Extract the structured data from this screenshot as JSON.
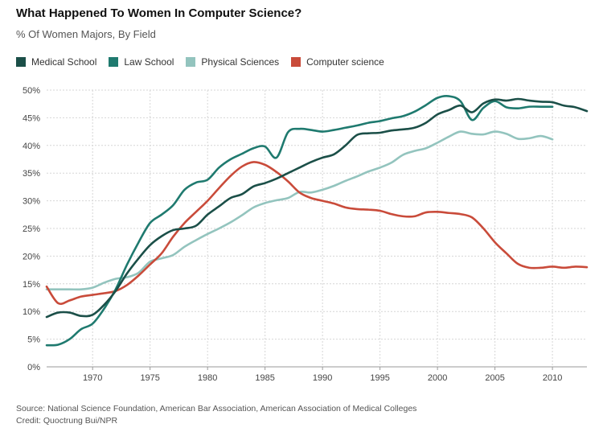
{
  "title": "What Happened To Women In Computer Science?",
  "subtitle": "% Of Women Majors, By Field",
  "footer": {
    "source": "Source: National Science Foundation, American Bar Association, American Association of Medical Colleges",
    "credit": "Credit: Quoctrung Bui/NPR"
  },
  "chart_data": {
    "type": "line",
    "title": "What Happened To Women In Computer Science?",
    "subtitle": "% Of Women Majors, By Field",
    "xlabel": "",
    "ylabel": "",
    "xlim": [
      1966,
      2013
    ],
    "ylim": [
      0,
      50
    ],
    "x_ticks": [
      1970,
      1975,
      1980,
      1985,
      1990,
      1995,
      2000,
      2005,
      2010
    ],
    "y_ticks": [
      0,
      5,
      10,
      15,
      20,
      25,
      30,
      35,
      40,
      45,
      50
    ],
    "y_tick_suffix": "%",
    "grid": true,
    "legend_position": "top-left",
    "series": [
      {
        "name": "Medical School",
        "color": "#1b4f48",
        "x": [
          1966,
          1967,
          1968,
          1969,
          1970,
          1971,
          1972,
          1973,
          1974,
          1975,
          1976,
          1977,
          1978,
          1979,
          1980,
          1981,
          1982,
          1983,
          1984,
          1985,
          1986,
          1987,
          1988,
          1989,
          1990,
          1991,
          1992,
          1993,
          1994,
          1995,
          1996,
          1997,
          1998,
          1999,
          2000,
          2001,
          2002,
          2003,
          2004,
          2005,
          2006,
          2007,
          2008,
          2009,
          2010,
          2011,
          2012,
          2013
        ],
        "y": [
          9.0,
          9.8,
          9.8,
          9.2,
          9.4,
          11.2,
          13.7,
          16.9,
          19.6,
          22.0,
          23.6,
          24.7,
          25.0,
          25.5,
          27.5,
          29.0,
          30.5,
          31.2,
          32.6,
          33.2,
          34.0,
          35.0,
          36.0,
          37.0,
          37.8,
          38.4,
          40.0,
          41.9,
          42.2,
          42.3,
          42.7,
          42.9,
          43.2,
          44.1,
          45.6,
          46.4,
          47.2,
          46.0,
          47.6,
          48.3,
          48.1,
          48.4,
          48.1,
          47.9,
          47.8,
          47.2,
          46.9,
          46.2
        ]
      },
      {
        "name": "Law School",
        "color": "#1f7a6f",
        "x": [
          1966,
          1967,
          1968,
          1969,
          1970,
          1971,
          1972,
          1973,
          1974,
          1975,
          1976,
          1977,
          1978,
          1979,
          1980,
          1981,
          1982,
          1983,
          1984,
          1985,
          1986,
          1987,
          1988,
          1989,
          1990,
          1991,
          1992,
          1993,
          1994,
          1995,
          1996,
          1997,
          1998,
          1999,
          2000,
          2001,
          2002,
          2003,
          2004,
          2005,
          2006,
          2007,
          2008,
          2009,
          2010
        ],
        "y": [
          3.9,
          4.0,
          5.0,
          6.8,
          7.8,
          10.5,
          14.0,
          18.5,
          22.5,
          26.0,
          27.5,
          29.2,
          32.0,
          33.3,
          33.8,
          36.0,
          37.5,
          38.5,
          39.5,
          39.8,
          37.8,
          42.4,
          43.0,
          42.8,
          42.5,
          42.8,
          43.2,
          43.6,
          44.1,
          44.4,
          44.9,
          45.3,
          46.1,
          47.3,
          48.6,
          48.9,
          48.0,
          44.6,
          46.8,
          48.0,
          46.9,
          46.7,
          47.0,
          47.0,
          47.0
        ]
      },
      {
        "name": "Physical Sciences",
        "color": "#93c4be",
        "x": [
          1966,
          1967,
          1968,
          1969,
          1970,
          1971,
          1972,
          1973,
          1974,
          1975,
          1976,
          1977,
          1978,
          1979,
          1980,
          1981,
          1982,
          1983,
          1984,
          1985,
          1986,
          1987,
          1988,
          1989,
          1990,
          1991,
          1992,
          1993,
          1994,
          1995,
          1996,
          1997,
          1998,
          1999,
          2000,
          2001,
          2002,
          2003,
          2004,
          2005,
          2006,
          2007,
          2008,
          2009,
          2010
        ],
        "y": [
          14.0,
          14.0,
          14.0,
          14.0,
          14.3,
          15.2,
          15.9,
          16.2,
          17.0,
          19.0,
          19.6,
          20.2,
          21.7,
          22.9,
          24.0,
          25.0,
          26.1,
          27.4,
          28.8,
          29.6,
          30.1,
          30.5,
          31.6,
          31.5,
          32.0,
          32.7,
          33.6,
          34.4,
          35.3,
          36.0,
          36.9,
          38.3,
          39.0,
          39.5,
          40.5,
          41.6,
          42.5,
          42.1,
          42.0,
          42.5,
          42.1,
          41.2,
          41.3,
          41.7,
          41.1
        ]
      },
      {
        "name": "Computer science",
        "color": "#c94b3a",
        "x": [
          1966,
          1967,
          1968,
          1969,
          1970,
          1971,
          1972,
          1973,
          1974,
          1975,
          1976,
          1977,
          1978,
          1979,
          1980,
          1981,
          1982,
          1983,
          1984,
          1985,
          1986,
          1987,
          1988,
          1989,
          1990,
          1991,
          1992,
          1993,
          1994,
          1995,
          1996,
          1997,
          1998,
          1999,
          2000,
          2001,
          2002,
          2003,
          2004,
          2005,
          2006,
          2007,
          2008,
          2009,
          2010,
          2011,
          2012,
          2013
        ],
        "y": [
          14.5,
          11.5,
          12.0,
          12.7,
          13.0,
          13.3,
          13.7,
          14.8,
          16.5,
          18.5,
          20.5,
          23.5,
          26.0,
          28.0,
          30.0,
          32.3,
          34.5,
          36.2,
          37.0,
          36.5,
          35.2,
          33.5,
          31.5,
          30.5,
          30.0,
          29.5,
          28.8,
          28.5,
          28.4,
          28.2,
          27.6,
          27.2,
          27.2,
          27.9,
          28.0,
          27.8,
          27.6,
          27.0,
          25.0,
          22.5,
          20.5,
          18.6,
          17.9,
          17.9,
          18.1,
          17.9,
          18.1,
          18.0
        ]
      }
    ]
  }
}
